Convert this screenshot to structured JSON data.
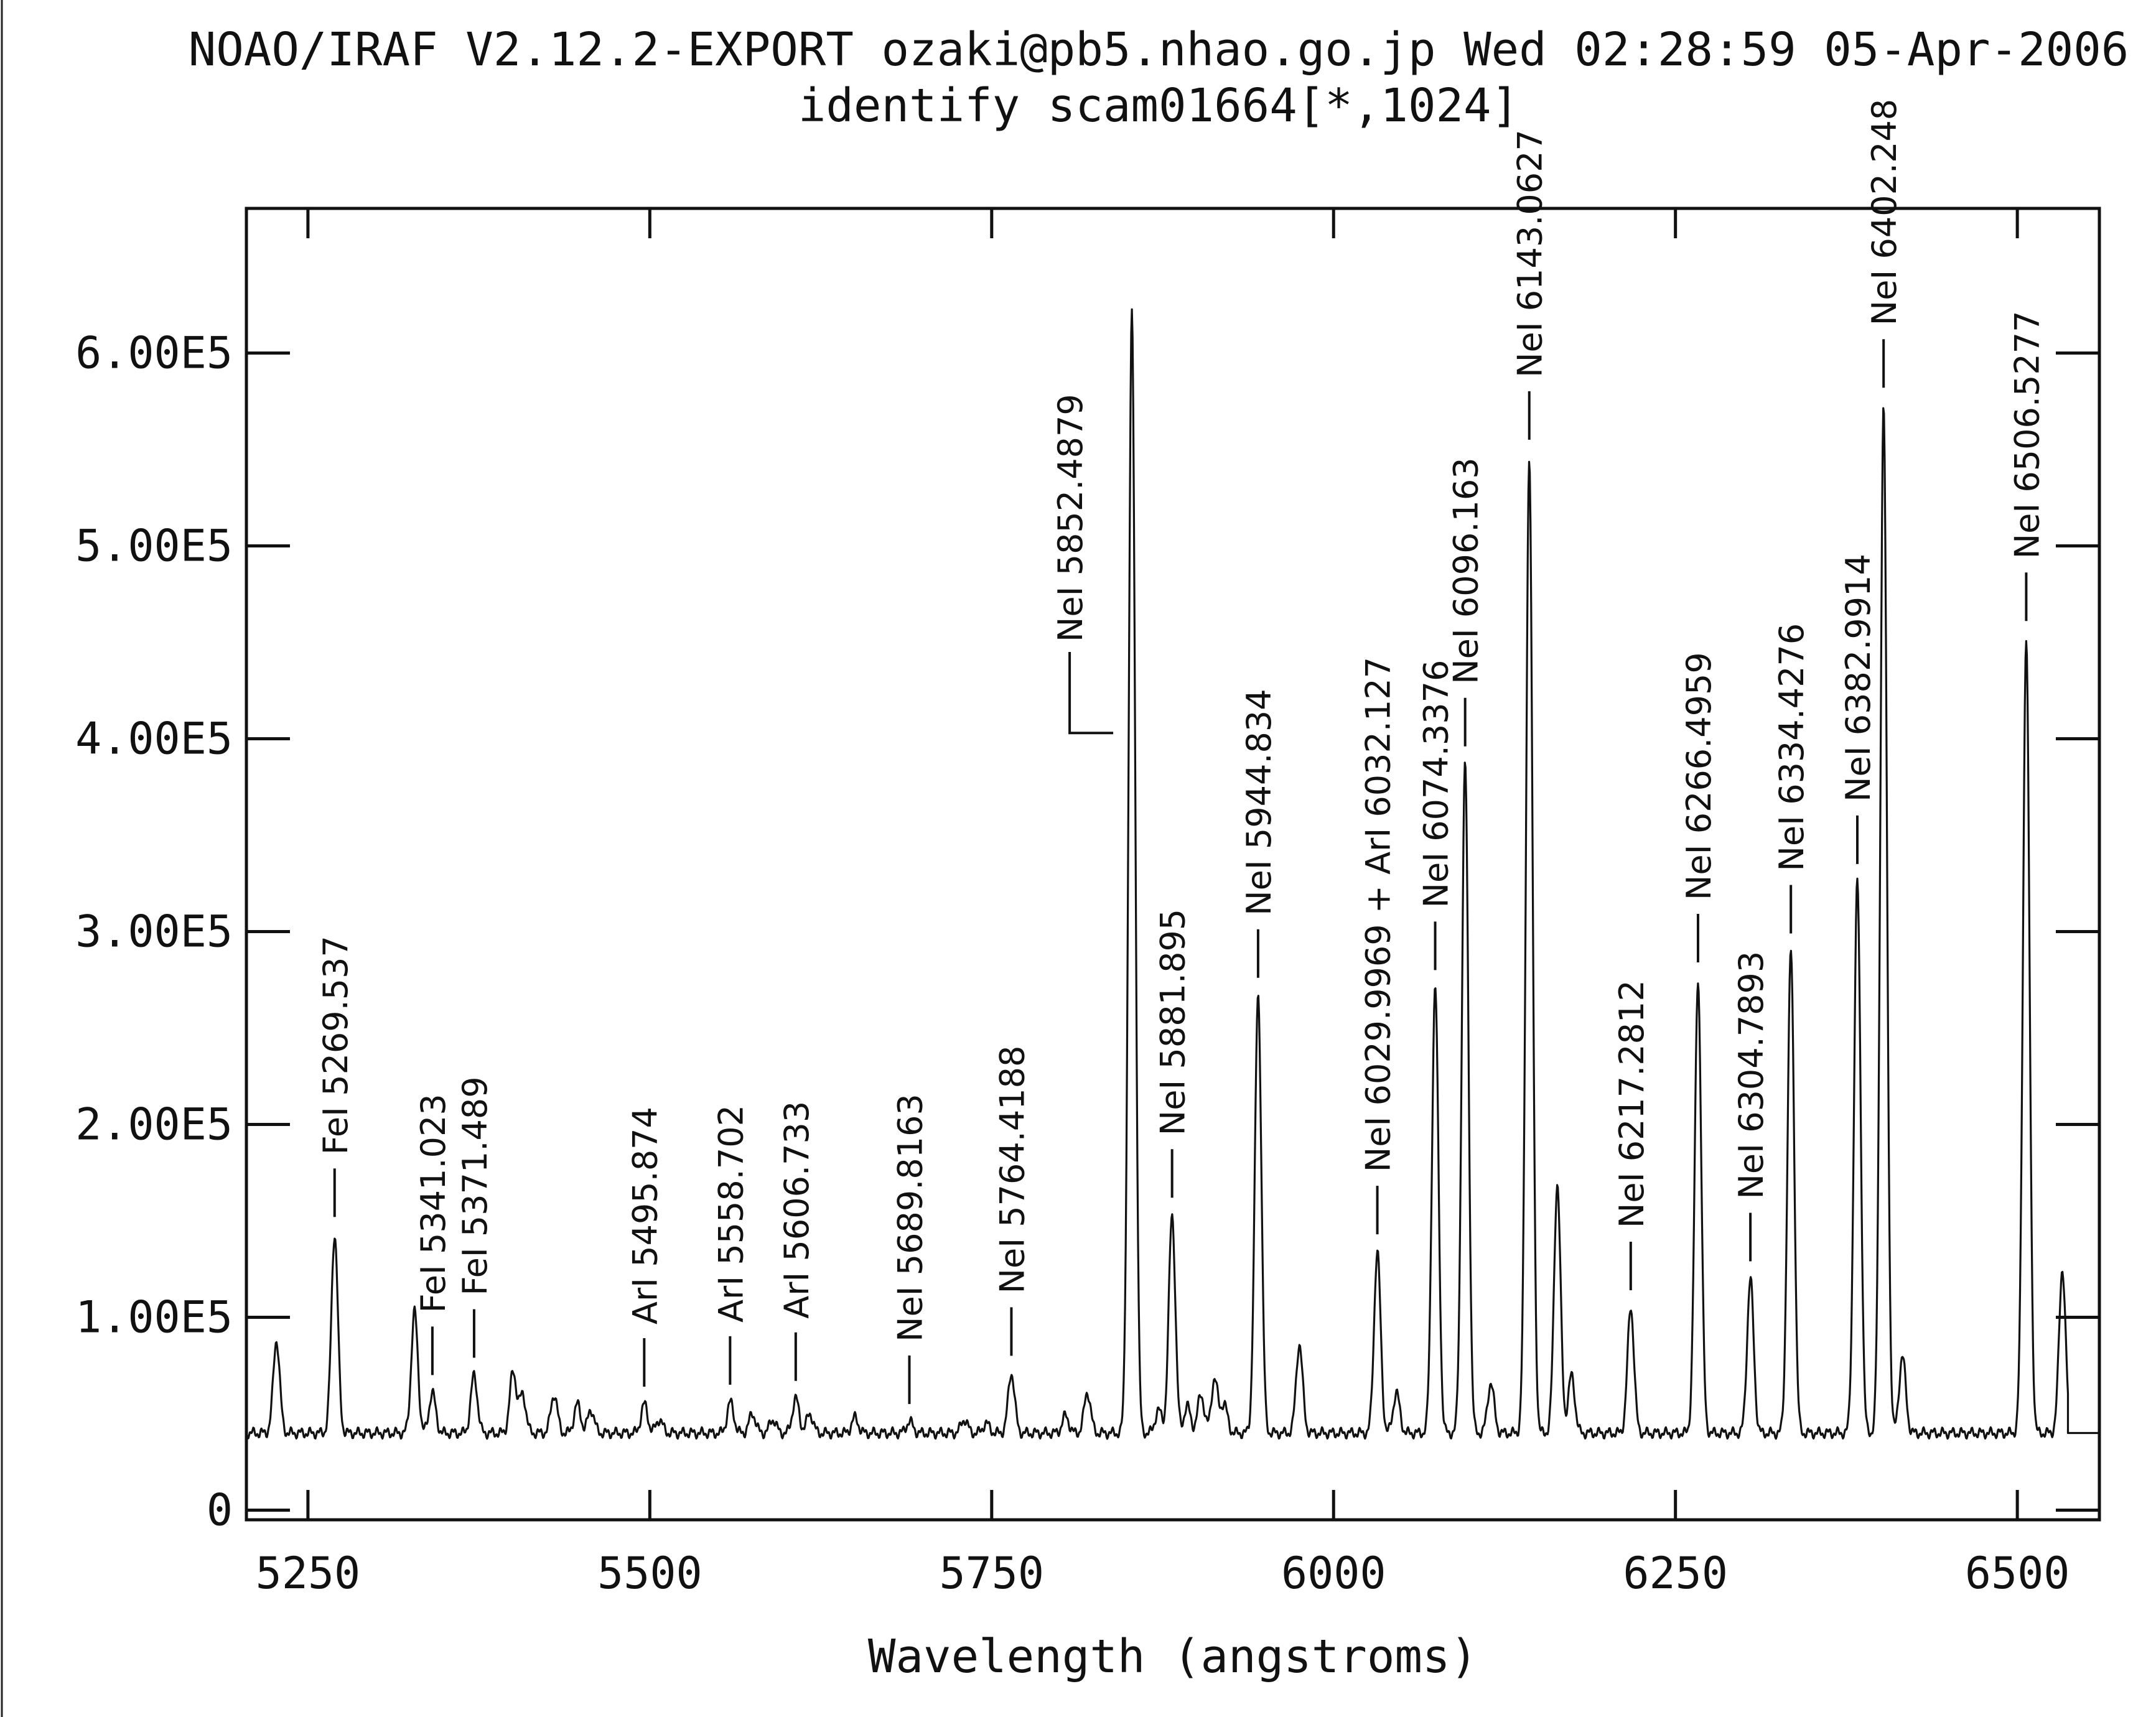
{
  "header": {
    "line1": "NOAO/IRAF V2.12.2-EXPORT ozaki@pb5.nhao.go.jp Wed 02:28:59 05-Apr-2006",
    "line2": "identify scam01664[*,1024]"
  },
  "chart_data": {
    "type": "line",
    "title": "NOAO/IRAF V2.12.2-EXPORT ozaki@pb5.nhao.go.jp Wed 02:28:59 05-Apr-2006",
    "subtitle": "identify scam01664[*,1024]",
    "xlabel": "Wavelength (angstroms)",
    "ylabel": "",
    "xlim": [
      5205,
      6560
    ],
    "ylim": [
      -5000,
      675000
    ],
    "x_ticks": [
      5250,
      5500,
      5750,
      6000,
      6250,
      6500
    ],
    "x_tick_labels": [
      "5250",
      "5500",
      "5750",
      "6000",
      "6250",
      "6500"
    ],
    "y_ticks": [
      0,
      100000,
      200000,
      300000,
      400000,
      500000,
      600000
    ],
    "y_tick_labels": [
      "0",
      "1.00E5",
      "2.00E5",
      "3.00E5",
      "4.00E5",
      "5.00E5",
      "6.00E5"
    ],
    "grid": false,
    "baseline": 40000,
    "continuum_end_x": 6537,
    "series": [
      {
        "peaks": [
          {
            "x": 5227,
            "y": 88000
          },
          {
            "x": 5269.5,
            "y": 143000
          },
          {
            "x": 5328,
            "y": 103000
          },
          {
            "x": 5341,
            "y": 61000
          },
          {
            "x": 5371.5,
            "y": 70000
          },
          {
            "x": 5400,
            "y": 72000
          },
          {
            "x": 5407,
            "y": 60000
          },
          {
            "x": 5430,
            "y": 60000
          },
          {
            "x": 5447,
            "y": 55000
          },
          {
            "x": 5457,
            "y": 52000
          },
          {
            "x": 5496,
            "y": 55000
          },
          {
            "x": 5507,
            "y": 47000
          },
          {
            "x": 5559,
            "y": 56000
          },
          {
            "x": 5575,
            "y": 50000
          },
          {
            "x": 5590,
            "y": 47000
          },
          {
            "x": 5606.7,
            "y": 58000
          },
          {
            "x": 5617,
            "y": 50000
          },
          {
            "x": 5650,
            "y": 48000
          },
          {
            "x": 5690,
            "y": 46000
          },
          {
            "x": 5730,
            "y": 47000
          },
          {
            "x": 5746,
            "y": 45000
          },
          {
            "x": 5764.4,
            "y": 71000
          },
          {
            "x": 5804,
            "y": 49000
          },
          {
            "x": 5820,
            "y": 61000
          },
          {
            "x": 5852.5,
            "y": 620000
          },
          {
            "x": 5872,
            "y": 52000
          },
          {
            "x": 5881.9,
            "y": 153000
          },
          {
            "x": 5893,
            "y": 54000
          },
          {
            "x": 5903,
            "y": 60000
          },
          {
            "x": 5913,
            "y": 68000
          },
          {
            "x": 5920,
            "y": 55000
          },
          {
            "x": 5944.8,
            "y": 267000
          },
          {
            "x": 5975,
            "y": 86000
          },
          {
            "x": 6032,
            "y": 134000
          },
          {
            "x": 6046,
            "y": 61000
          },
          {
            "x": 6074.3,
            "y": 271000
          },
          {
            "x": 6096.2,
            "y": 387000
          },
          {
            "x": 6115,
            "y": 66000
          },
          {
            "x": 6143.1,
            "y": 546000
          },
          {
            "x": 6163.6,
            "y": 169000
          },
          {
            "x": 6174,
            "y": 70000
          },
          {
            "x": 6217.3,
            "y": 105000
          },
          {
            "x": 6266.5,
            "y": 275000
          },
          {
            "x": 6304.8,
            "y": 120000
          },
          {
            "x": 6334.4,
            "y": 290000
          },
          {
            "x": 6383,
            "y": 326000
          },
          {
            "x": 6402.2,
            "y": 573000
          },
          {
            "x": 6416,
            "y": 80000
          },
          {
            "x": 6506.5,
            "y": 452000
          },
          {
            "x": 6532.9,
            "y": 125000
          }
        ]
      }
    ],
    "annotations": [
      {
        "label": "FeI 5269.537",
        "x": 5269.5
      },
      {
        "label": "FeI 5341.023",
        "x": 5341.0
      },
      {
        "label": "FeI 5371.489",
        "x": 5371.5
      },
      {
        "label": "ArI 5495.874",
        "x": 5495.9
      },
      {
        "label": "ArI 5558.702",
        "x": 5558.7
      },
      {
        "label": "ArI 5606.733",
        "x": 5606.7
      },
      {
        "label": "NeI 5689.8163",
        "x": 5689.8
      },
      {
        "label": "NeI 5764.4188",
        "x": 5764.4
      },
      {
        "label": "NeI 5852.4879",
        "x": 5852.5
      },
      {
        "label": "NeI 5881.895",
        "x": 5881.9
      },
      {
        "label": "NeI 5944.834",
        "x": 5944.8
      },
      {
        "label": "NeI 6029.9969 + ArI 6032.127",
        "x": 6032.0
      },
      {
        "label": "NeI 6074.3376",
        "x": 6074.3
      },
      {
        "label": "NeI 6096.163",
        "x": 6096.2
      },
      {
        "label": "NeI 6143.0627",
        "x": 6143.1
      },
      {
        "label": "NeI 6217.2812",
        "x": 6217.3
      },
      {
        "label": "NeI 6266.4959",
        "x": 6266.5
      },
      {
        "label": "NeI 6304.7893",
        "x": 6304.8
      },
      {
        "label": "NeI 6334.4276",
        "x": 6334.4
      },
      {
        "label": "NeI 6382.9914",
        "x": 6383.0
      },
      {
        "label": "NeI 6402.248",
        "x": 6402.2
      },
      {
        "label": "NeI 6506.5277",
        "x": 6506.5
      }
    ]
  }
}
